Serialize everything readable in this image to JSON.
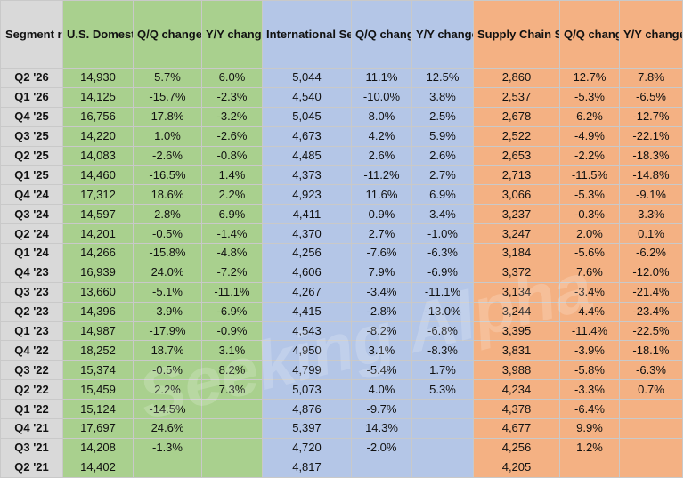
{
  "headers": {
    "label": "Segment revenue (in $ M)",
    "us_domestic": "U.S. Domestic Segment",
    "us_qq": "Q/Q change",
    "us_yy": "Y/Y change",
    "international": "International Segment",
    "intl_qq": "Q/Q change",
    "intl_yy": "Y/Y change",
    "supply_chain": "Supply Chain Solutions",
    "scs_qq": "Q/Q change",
    "scs_yy": "Y/Y change"
  },
  "watermark": "Seeking Alpha",
  "colors": {
    "green": "#a9d08e",
    "blue": "#b4c6e7",
    "orange": "#f4b183",
    "label_gray": "#d9d9d9"
  },
  "rows": [
    [
      "Q2 '26",
      "14,930",
      "5.7%",
      "6.0%",
      "5,044",
      "11.1%",
      "12.5%",
      "2,860",
      "12.7%",
      "7.8%"
    ],
    [
      "Q1 '26",
      "14,125",
      "-15.7%",
      "-2.3%",
      "4,540",
      "-10.0%",
      "3.8%",
      "2,537",
      "-5.3%",
      "-6.5%"
    ],
    [
      "Q4 '25",
      "16,756",
      "17.8%",
      "-3.2%",
      "5,045",
      "8.0%",
      "2.5%",
      "2,678",
      "6.2%",
      "-12.7%"
    ],
    [
      "Q3 '25",
      "14,220",
      "1.0%",
      "-2.6%",
      "4,673",
      "4.2%",
      "5.9%",
      "2,522",
      "-4.9%",
      "-22.1%"
    ],
    [
      "Q2 '25",
      "14,083",
      "-2.6%",
      "-0.8%",
      "4,485",
      "2.6%",
      "2.6%",
      "2,653",
      "-2.2%",
      "-18.3%"
    ],
    [
      "Q1 '25",
      "14,460",
      "-16.5%",
      "1.4%",
      "4,373",
      "-11.2%",
      "2.7%",
      "2,713",
      "-11.5%",
      "-14.8%"
    ],
    [
      "Q4 '24",
      "17,312",
      "18.6%",
      "2.2%",
      "4,923",
      "11.6%",
      "6.9%",
      "3,066",
      "-5.3%",
      "-9.1%"
    ],
    [
      "Q3 '24",
      "14,597",
      "2.8%",
      "6.9%",
      "4,411",
      "0.9%",
      "3.4%",
      "3,237",
      "-0.3%",
      "3.3%"
    ],
    [
      "Q2 '24",
      "14,201",
      "-0.5%",
      "-1.4%",
      "4,370",
      "2.7%",
      "-1.0%",
      "3,247",
      "2.0%",
      "0.1%"
    ],
    [
      "Q1 '24",
      "14,266",
      "-15.8%",
      "-4.8%",
      "4,256",
      "-7.6%",
      "-6.3%",
      "3,184",
      "-5.6%",
      "-6.2%"
    ],
    [
      "Q4 '23",
      "16,939",
      "24.0%",
      "-7.2%",
      "4,606",
      "7.9%",
      "-6.9%",
      "3,372",
      "7.6%",
      "-12.0%"
    ],
    [
      "Q3 '23",
      "13,660",
      "-5.1%",
      "-11.1%",
      "4,267",
      "-3.4%",
      "-11.1%",
      "3,134",
      "-3.4%",
      "-21.4%"
    ],
    [
      "Q2 '23",
      "14,396",
      "-3.9%",
      "-6.9%",
      "4,415",
      "-2.8%",
      "-13.0%",
      "3,244",
      "-4.4%",
      "-23.4%"
    ],
    [
      "Q1 '23",
      "14,987",
      "-17.9%",
      "-0.9%",
      "4,543",
      "-8.2%",
      "-6.8%",
      "3,395",
      "-11.4%",
      "-22.5%"
    ],
    [
      "Q4 '22",
      "18,252",
      "18.7%",
      "3.1%",
      "4,950",
      "3.1%",
      "-8.3%",
      "3,831",
      "-3.9%",
      "-18.1%"
    ],
    [
      "Q3 '22",
      "15,374",
      "-0.5%",
      "8.2%",
      "4,799",
      "-5.4%",
      "1.7%",
      "3,988",
      "-5.8%",
      "-6.3%"
    ],
    [
      "Q2 '22",
      "15,459",
      "2.2%",
      "7.3%",
      "5,073",
      "4.0%",
      "5.3%",
      "4,234",
      "-3.3%",
      "0.7%"
    ],
    [
      "Q1 '22",
      "15,124",
      "-14.5%",
      "",
      "4,876",
      "-9.7%",
      "",
      "4,378",
      "-6.4%",
      ""
    ],
    [
      "Q4 '21",
      "17,697",
      "24.6%",
      "",
      "5,397",
      "14.3%",
      "",
      "4,677",
      "9.9%",
      ""
    ],
    [
      "Q3 '21",
      "14,208",
      "-1.3%",
      "",
      "4,720",
      "-2.0%",
      "",
      "4,256",
      "1.2%",
      ""
    ],
    [
      "Q2 '21",
      "14,402",
      "",
      "",
      "4,817",
      "",
      "",
      "4,205",
      "",
      ""
    ]
  ]
}
